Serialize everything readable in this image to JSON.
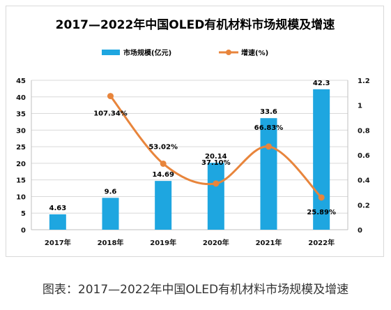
{
  "caption": "图表：2017—2022年中国OLED有机材料市场规模及增速",
  "colors": {
    "bar": "#1ea6e0",
    "line": "#e8853c",
    "grid": "#d9d9d9",
    "axis_text": "#111111"
  },
  "chart_data": {
    "type": "bar",
    "title": "2017—2022年中国OLED有机材料市场规模及增速",
    "categories": [
      "2017年",
      "2018年",
      "2019年",
      "2020年",
      "2021年",
      "2022年"
    ],
    "series": [
      {
        "name": "市场规模(亿元)",
        "type": "bar",
        "axis": "left",
        "values": [
          4.63,
          9.6,
          14.69,
          20.14,
          33.6,
          42.3
        ],
        "labels": [
          "4.63",
          "9.6",
          "14.69",
          "20.14",
          "33.6",
          "42.3"
        ]
      },
      {
        "name": "增速(%)",
        "type": "line",
        "axis": "right",
        "values": [
          null,
          1.0734,
          0.5302,
          0.371,
          0.6683,
          0.2589
        ],
        "labels": [
          "",
          "107.34%",
          "53.02%",
          "37.10%",
          "66.83%",
          "25.89%"
        ]
      }
    ],
    "y_left": {
      "min": 0,
      "max": 45,
      "ticks": [
        "0",
        "5",
        "10",
        "15",
        "20",
        "25",
        "30",
        "35",
        "40",
        "45"
      ]
    },
    "y_right": {
      "min": 0,
      "max": 1.2,
      "ticks": [
        "0",
        "0.2",
        "0.4",
        "0.6",
        "0.8",
        "1",
        "1.2"
      ]
    },
    "grid": true,
    "legend": "top"
  }
}
